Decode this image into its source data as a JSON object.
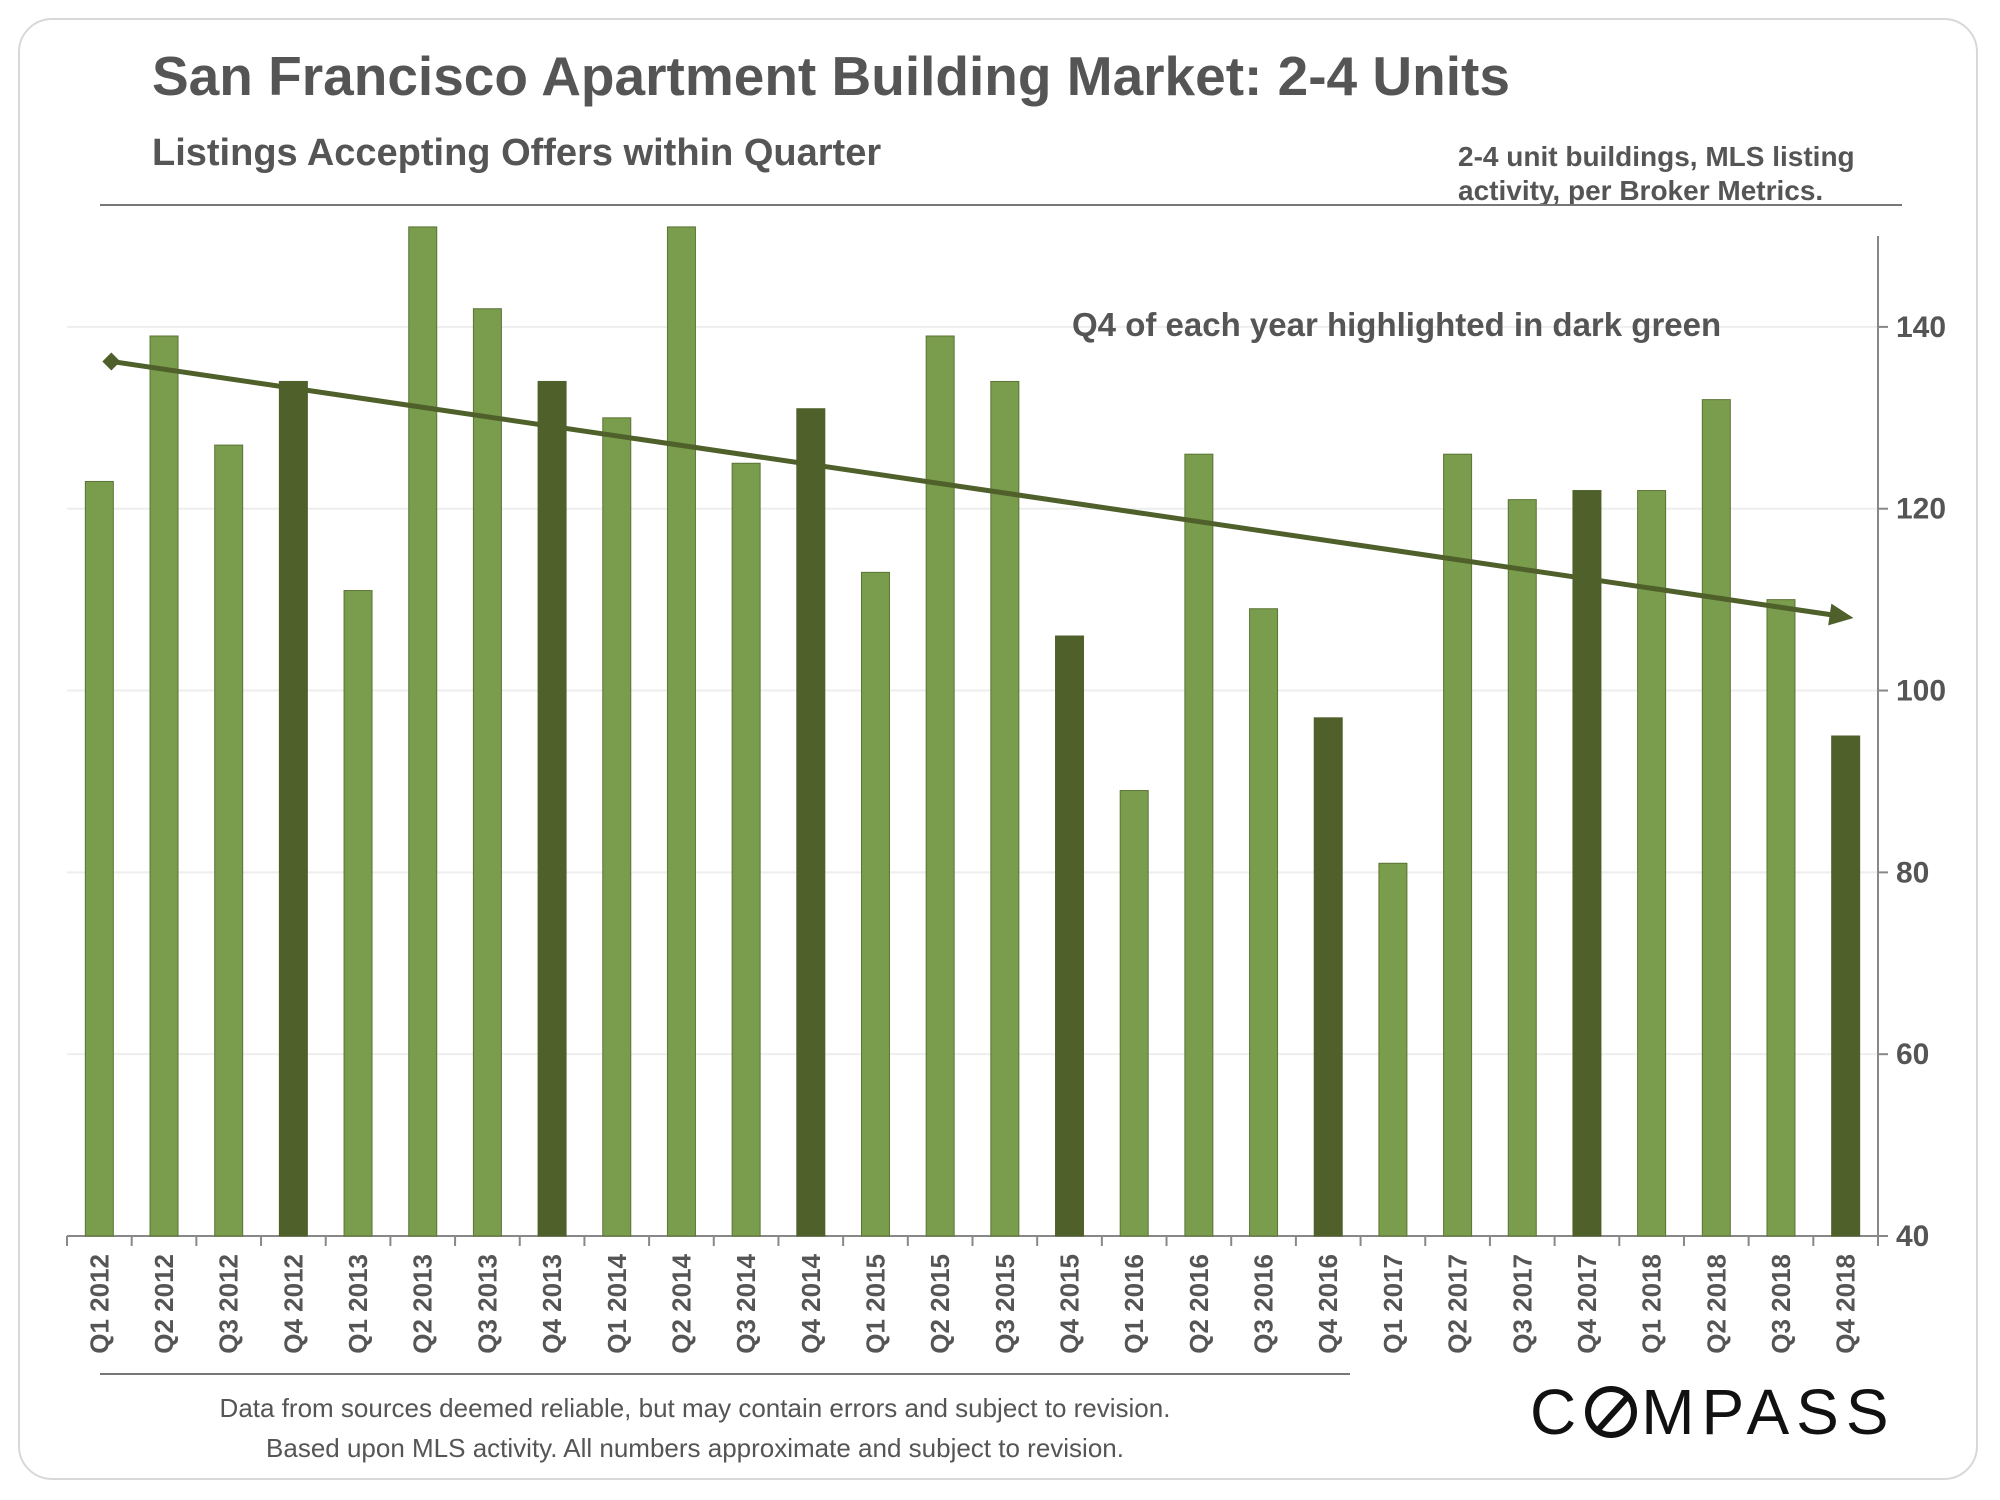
{
  "header": {
    "title": "San Francisco Apartment Building Market: 2-4 Units",
    "subtitle": "Listings Accepting Offers within Quarter",
    "source_note": "2-4 unit buildings, MLS listing activity, per Broker Metrics."
  },
  "annotation": "Q4 of each year highlighted in dark green",
  "footer": {
    "disclaimer_line1": "Data from sources deemed reliable, but may contain errors and subject to revision.",
    "disclaimer_line2": "Based upon MLS activity. All numbers approximate and subject to revision.",
    "logo_prefix": "C",
    "logo_suffix": "MPASS"
  },
  "colors": {
    "bar": "#7a9c4d",
    "bar_highlight": "#4f602b",
    "bar_edge": "#5b7434",
    "trend": "#4f602b",
    "axis": "#888888",
    "grid": "#eeeeee"
  },
  "chart_data": {
    "type": "bar",
    "title": "Listings Accepting Offers within Quarter",
    "xlabel": "",
    "ylabel": "",
    "y_axis_side": "right",
    "ylim": [
      40,
      150
    ],
    "yticks": [
      40,
      60,
      80,
      100,
      120,
      140
    ],
    "grid": true,
    "categories": [
      "Q1 2012",
      "Q2 2012",
      "Q3 2012",
      "Q4 2012",
      "Q1 2013",
      "Q2 2013",
      "Q3 2013",
      "Q4 2013",
      "Q1 2014",
      "Q2 2014",
      "Q3 2014",
      "Q4 2014",
      "Q1 2015",
      "Q2 2015",
      "Q3 2015",
      "Q4 2015",
      "Q1 2016",
      "Q2 2016",
      "Q3 2016",
      "Q4 2016",
      "Q1 2017",
      "Q2 2017",
      "Q3 2017",
      "Q4 2017",
      "Q1 2018",
      "Q2 2018",
      "Q3 2018",
      "Q4 2018"
    ],
    "values": [
      123,
      139,
      127,
      134,
      111,
      151,
      142,
      134,
      130,
      151,
      125,
      131,
      113,
      139,
      134,
      106,
      89,
      126,
      109,
      97,
      81,
      126,
      121,
      122,
      122,
      132,
      110,
      95
    ],
    "highlighted": [
      "Q4 2012",
      "Q4 2013",
      "Q4 2014",
      "Q4 2015",
      "Q4 2016",
      "Q4 2017",
      "Q4 2018"
    ],
    "trend_line": {
      "start": 136.2,
      "end": 108.2,
      "arrow": true
    }
  }
}
